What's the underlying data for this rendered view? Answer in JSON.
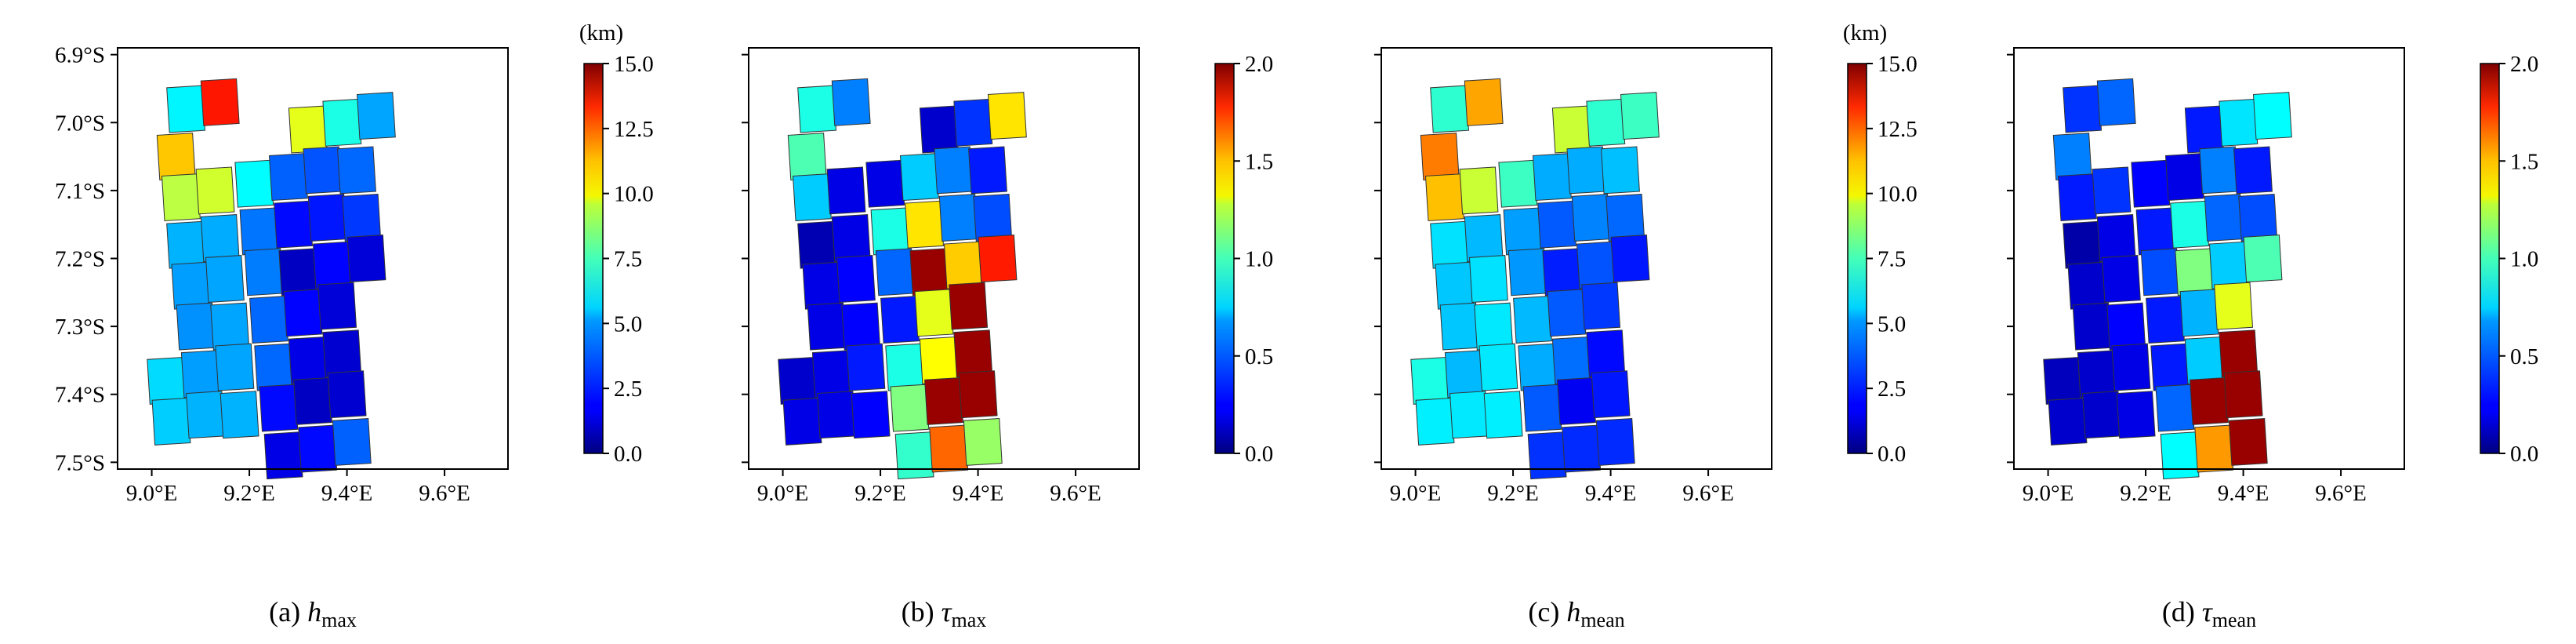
{
  "figure": {
    "panels_count": 4,
    "shared_axes": {
      "lon_ticks": [
        "9.0°E",
        "9.2°E",
        "9.4°E",
        "9.6°E"
      ],
      "lat_ticks": [
        "6.9°S",
        "7.0°S",
        "7.1°S",
        "7.2°S",
        "7.3°S",
        "7.4°S",
        "7.5°S"
      ]
    }
  },
  "chart_data": [
    {
      "id": "a",
      "type": "heatmap",
      "caption_prefix": "(a) ",
      "symbol": "h",
      "subscript": "max",
      "unit_label": "(km)",
      "xlim": [
        8.93,
        9.73
      ],
      "ylim": [
        -7.51,
        -6.89
      ],
      "colorbar": {
        "min": 0,
        "max": 15,
        "ticks": [
          "0.0",
          "2.5",
          "5.0",
          "7.5",
          "10.0",
          "12.5",
          "15.0"
        ]
      },
      "cells": [
        {
          "lon": 9.07,
          "lat": -6.98,
          "value": 5.5
        },
        {
          "lon": 9.14,
          "lat": -6.97,
          "value": 12.8
        },
        {
          "lon": 9.32,
          "lat": -7.01,
          "value": 9.0
        },
        {
          "lon": 9.39,
          "lat": -7.0,
          "value": 6.0
        },
        {
          "lon": 9.46,
          "lat": -6.99,
          "value": 4.3
        },
        {
          "lon": 9.05,
          "lat": -7.05,
          "value": 10.2
        },
        {
          "lon": 9.06,
          "lat": -7.11,
          "value": 8.4
        },
        {
          "lon": 9.13,
          "lat": -7.1,
          "value": 8.7
        },
        {
          "lon": 9.21,
          "lat": -7.09,
          "value": 5.6
        },
        {
          "lon": 9.28,
          "lat": -7.08,
          "value": 3.3
        },
        {
          "lon": 9.35,
          "lat": -7.07,
          "value": 3.1
        },
        {
          "lon": 9.42,
          "lat": -7.07,
          "value": 3.4
        },
        {
          "lon": 9.07,
          "lat": -7.18,
          "value": 4.5
        },
        {
          "lon": 9.14,
          "lat": -7.17,
          "value": 4.4
        },
        {
          "lon": 9.22,
          "lat": -7.16,
          "value": 3.6
        },
        {
          "lon": 9.29,
          "lat": -7.15,
          "value": 2.0
        },
        {
          "lon": 9.36,
          "lat": -7.14,
          "value": 2.2
        },
        {
          "lon": 9.43,
          "lat": -7.14,
          "value": 2.7
        },
        {
          "lon": 9.08,
          "lat": -7.24,
          "value": 4.2
        },
        {
          "lon": 9.15,
          "lat": -7.23,
          "value": 4.3
        },
        {
          "lon": 9.23,
          "lat": -7.22,
          "value": 3.7
        },
        {
          "lon": 9.3,
          "lat": -7.22,
          "value": 1.0
        },
        {
          "lon": 9.37,
          "lat": -7.21,
          "value": 1.9
        },
        {
          "lon": 9.44,
          "lat": -7.2,
          "value": 1.3
        },
        {
          "lon": 9.09,
          "lat": -7.3,
          "value": 4.0
        },
        {
          "lon": 9.16,
          "lat": -7.3,
          "value": 4.3
        },
        {
          "lon": 9.24,
          "lat": -7.29,
          "value": 3.4
        },
        {
          "lon": 9.31,
          "lat": -7.28,
          "value": 1.9
        },
        {
          "lon": 9.38,
          "lat": -7.27,
          "value": 1.3
        },
        {
          "lon": 9.03,
          "lat": -7.38,
          "value": 5.1
        },
        {
          "lon": 9.1,
          "lat": -7.37,
          "value": 4.2
        },
        {
          "lon": 9.17,
          "lat": -7.36,
          "value": 4.3
        },
        {
          "lon": 9.25,
          "lat": -7.36,
          "value": 3.4
        },
        {
          "lon": 9.32,
          "lat": -7.35,
          "value": 1.5
        },
        {
          "lon": 9.39,
          "lat": -7.34,
          "value": 1.2
        },
        {
          "lon": 9.04,
          "lat": -7.44,
          "value": 4.9
        },
        {
          "lon": 9.11,
          "lat": -7.43,
          "value": 4.5
        },
        {
          "lon": 9.18,
          "lat": -7.43,
          "value": 4.5
        },
        {
          "lon": 9.26,
          "lat": -7.42,
          "value": 2.0
        },
        {
          "lon": 9.33,
          "lat": -7.41,
          "value": 1.0
        },
        {
          "lon": 9.4,
          "lat": -7.4,
          "value": 1.2
        },
        {
          "lon": 9.27,
          "lat": -7.49,
          "value": 1.5
        },
        {
          "lon": 9.34,
          "lat": -7.48,
          "value": 2.0
        },
        {
          "lon": 9.41,
          "lat": -7.47,
          "value": 3.3
        }
      ]
    },
    {
      "id": "b",
      "type": "heatmap",
      "caption_prefix": "(b) ",
      "symbol": "τ",
      "subscript": "max",
      "unit_label": "",
      "xlim": [
        8.93,
        9.73
      ],
      "ylim": [
        -7.51,
        -6.89
      ],
      "colorbar": {
        "min": 0,
        "max": 2,
        "ticks": [
          "0.0",
          "0.5",
          "1.0",
          "1.5",
          "2.0"
        ]
      },
      "cells": [
        {
          "lon": 9.07,
          "lat": -6.98,
          "value": 0.8
        },
        {
          "lon": 9.14,
          "lat": -6.97,
          "value": 0.5
        },
        {
          "lon": 9.32,
          "lat": -7.01,
          "value": 0.15
        },
        {
          "lon": 9.39,
          "lat": -7.0,
          "value": 0.35
        },
        {
          "lon": 9.46,
          "lat": -6.99,
          "value": 1.3
        },
        {
          "lon": 9.05,
          "lat": -7.05,
          "value": 0.9
        },
        {
          "lon": 9.06,
          "lat": -7.11,
          "value": 0.65
        },
        {
          "lon": 9.13,
          "lat": -7.1,
          "value": 0.2
        },
        {
          "lon": 9.21,
          "lat": -7.09,
          "value": 0.2
        },
        {
          "lon": 9.28,
          "lat": -7.08,
          "value": 0.65
        },
        {
          "lon": 9.35,
          "lat": -7.07,
          "value": 0.5
        },
        {
          "lon": 9.42,
          "lat": -7.07,
          "value": 0.3
        },
        {
          "lon": 9.07,
          "lat": -7.18,
          "value": 0.1
        },
        {
          "lon": 9.14,
          "lat": -7.17,
          "value": 0.2
        },
        {
          "lon": 9.22,
          "lat": -7.16,
          "value": 0.8
        },
        {
          "lon": 9.29,
          "lat": -7.15,
          "value": 1.3
        },
        {
          "lon": 9.36,
          "lat": -7.14,
          "value": 0.5
        },
        {
          "lon": 9.43,
          "lat": -7.14,
          "value": 0.4
        },
        {
          "lon": 9.08,
          "lat": -7.24,
          "value": 0.2
        },
        {
          "lon": 9.15,
          "lat": -7.23,
          "value": 0.25
        },
        {
          "lon": 9.23,
          "lat": -7.22,
          "value": 0.45
        },
        {
          "lon": 9.3,
          "lat": -7.22,
          "value": 1.95
        },
        {
          "lon": 9.37,
          "lat": -7.21,
          "value": 1.35
        },
        {
          "lon": 9.44,
          "lat": -7.2,
          "value": 1.7
        },
        {
          "lon": 9.09,
          "lat": -7.3,
          "value": 0.2
        },
        {
          "lon": 9.16,
          "lat": -7.3,
          "value": 0.25
        },
        {
          "lon": 9.24,
          "lat": -7.29,
          "value": 0.3
        },
        {
          "lon": 9.31,
          "lat": -7.28,
          "value": 1.2
        },
        {
          "lon": 9.38,
          "lat": -7.27,
          "value": 1.95
        },
        {
          "lon": 9.03,
          "lat": -7.38,
          "value": 0.15
        },
        {
          "lon": 9.1,
          "lat": -7.37,
          "value": 0.2
        },
        {
          "lon": 9.17,
          "lat": -7.36,
          "value": 0.3
        },
        {
          "lon": 9.25,
          "lat": -7.36,
          "value": 0.8
        },
        {
          "lon": 9.32,
          "lat": -7.35,
          "value": 1.25
        },
        {
          "lon": 9.39,
          "lat": -7.34,
          "value": 1.95
        },
        {
          "lon": 9.04,
          "lat": -7.44,
          "value": 0.2
        },
        {
          "lon": 9.11,
          "lat": -7.43,
          "value": 0.2
        },
        {
          "lon": 9.18,
          "lat": -7.43,
          "value": 0.25
        },
        {
          "lon": 9.26,
          "lat": -7.42,
          "value": 1.0
        },
        {
          "lon": 9.33,
          "lat": -7.41,
          "value": 1.95
        },
        {
          "lon": 9.4,
          "lat": -7.4,
          "value": 1.95
        },
        {
          "lon": 9.27,
          "lat": -7.49,
          "value": 0.85
        },
        {
          "lon": 9.34,
          "lat": -7.48,
          "value": 1.55
        },
        {
          "lon": 9.41,
          "lat": -7.47,
          "value": 1.05
        }
      ]
    },
    {
      "id": "c",
      "type": "heatmap",
      "caption_prefix": "(c) ",
      "symbol": "h",
      "subscript": "mean",
      "unit_label": "(km)",
      "xlim": [
        8.93,
        9.73
      ],
      "ylim": [
        -7.51,
        -6.89
      ],
      "colorbar": {
        "min": 0,
        "max": 15,
        "ticks": [
          "0.0",
          "2.5",
          "5.0",
          "7.5",
          "10.0",
          "12.5",
          "15.0"
        ]
      },
      "cells": [
        {
          "lon": 9.07,
          "lat": -6.98,
          "value": 6.3
        },
        {
          "lon": 9.14,
          "lat": -6.97,
          "value": 10.7
        },
        {
          "lon": 9.32,
          "lat": -7.01,
          "value": 8.6
        },
        {
          "lon": 9.39,
          "lat": -7.0,
          "value": 6.3
        },
        {
          "lon": 9.46,
          "lat": -6.99,
          "value": 6.5
        },
        {
          "lon": 9.05,
          "lat": -7.05,
          "value": 11.3
        },
        {
          "lon": 9.06,
          "lat": -7.11,
          "value": 10.3
        },
        {
          "lon": 9.13,
          "lat": -7.1,
          "value": 8.6
        },
        {
          "lon": 9.21,
          "lat": -7.09,
          "value": 6.5
        },
        {
          "lon": 9.28,
          "lat": -7.08,
          "value": 4.4
        },
        {
          "lon": 9.35,
          "lat": -7.07,
          "value": 4.4
        },
        {
          "lon": 9.42,
          "lat": -7.07,
          "value": 4.7
        },
        {
          "lon": 9.07,
          "lat": -7.18,
          "value": 5.2
        },
        {
          "lon": 9.14,
          "lat": -7.17,
          "value": 4.6
        },
        {
          "lon": 9.22,
          "lat": -7.16,
          "value": 4.2
        },
        {
          "lon": 9.29,
          "lat": -7.15,
          "value": 3.2
        },
        {
          "lon": 9.36,
          "lat": -7.14,
          "value": 3.8
        },
        {
          "lon": 9.43,
          "lat": -7.14,
          "value": 3.4
        },
        {
          "lon": 9.08,
          "lat": -7.24,
          "value": 4.8
        },
        {
          "lon": 9.15,
          "lat": -7.23,
          "value": 5.2
        },
        {
          "lon": 9.23,
          "lat": -7.22,
          "value": 4.1
        },
        {
          "lon": 9.3,
          "lat": -7.22,
          "value": 2.3
        },
        {
          "lon": 9.37,
          "lat": -7.21,
          "value": 3.1
        },
        {
          "lon": 9.44,
          "lat": -7.2,
          "value": 2.2
        },
        {
          "lon": 9.09,
          "lat": -7.3,
          "value": 4.8
        },
        {
          "lon": 9.16,
          "lat": -7.3,
          "value": 5.3
        },
        {
          "lon": 9.24,
          "lat": -7.29,
          "value": 4.6
        },
        {
          "lon": 9.31,
          "lat": -7.28,
          "value": 3.2
        },
        {
          "lon": 9.38,
          "lat": -7.27,
          "value": 2.7
        },
        {
          "lon": 9.03,
          "lat": -7.38,
          "value": 6.0
        },
        {
          "lon": 9.1,
          "lat": -7.37,
          "value": 4.6
        },
        {
          "lon": 9.17,
          "lat": -7.36,
          "value": 5.3
        },
        {
          "lon": 9.25,
          "lat": -7.36,
          "value": 4.4
        },
        {
          "lon": 9.32,
          "lat": -7.35,
          "value": 3.5
        },
        {
          "lon": 9.39,
          "lat": -7.34,
          "value": 2.0
        },
        {
          "lon": 9.04,
          "lat": -7.44,
          "value": 5.4
        },
        {
          "lon": 9.11,
          "lat": -7.43,
          "value": 5.3
        },
        {
          "lon": 9.18,
          "lat": -7.43,
          "value": 5.4
        },
        {
          "lon": 9.26,
          "lat": -7.42,
          "value": 3.2
        },
        {
          "lon": 9.33,
          "lat": -7.41,
          "value": 1.7
        },
        {
          "lon": 9.4,
          "lat": -7.4,
          "value": 2.2
        },
        {
          "lon": 9.27,
          "lat": -7.49,
          "value": 2.6
        },
        {
          "lon": 9.34,
          "lat": -7.48,
          "value": 2.5
        },
        {
          "lon": 9.41,
          "lat": -7.47,
          "value": 2.5
        }
      ]
    },
    {
      "id": "d",
      "type": "heatmap",
      "caption_prefix": "(d) ",
      "symbol": "τ",
      "subscript": "mean",
      "unit_label": "",
      "xlim": [
        8.93,
        9.73
      ],
      "ylim": [
        -7.51,
        -6.89
      ],
      "colorbar": {
        "min": 0,
        "max": 2,
        "ticks": [
          "0.0",
          "0.5",
          "1.0",
          "1.5",
          "2.0"
        ]
      },
      "cells": [
        {
          "lon": 9.07,
          "lat": -6.98,
          "value": 0.35
        },
        {
          "lon": 9.14,
          "lat": -6.97,
          "value": 0.45
        },
        {
          "lon": 9.32,
          "lat": -7.01,
          "value": 0.3
        },
        {
          "lon": 9.39,
          "lat": -7.0,
          "value": 0.7
        },
        {
          "lon": 9.46,
          "lat": -6.99,
          "value": 0.75
        },
        {
          "lon": 9.05,
          "lat": -7.05,
          "value": 0.5
        },
        {
          "lon": 9.06,
          "lat": -7.11,
          "value": 0.3
        },
        {
          "lon": 9.13,
          "lat": -7.1,
          "value": 0.35
        },
        {
          "lon": 9.21,
          "lat": -7.09,
          "value": 0.25
        },
        {
          "lon": 9.28,
          "lat": -7.08,
          "value": 0.2
        },
        {
          "lon": 9.35,
          "lat": -7.07,
          "value": 0.5
        },
        {
          "lon": 9.42,
          "lat": -7.07,
          "value": 0.3
        },
        {
          "lon": 9.07,
          "lat": -7.18,
          "value": 0.08
        },
        {
          "lon": 9.14,
          "lat": -7.17,
          "value": 0.2
        },
        {
          "lon": 9.22,
          "lat": -7.16,
          "value": 0.3
        },
        {
          "lon": 9.29,
          "lat": -7.15,
          "value": 0.8
        },
        {
          "lon": 9.36,
          "lat": -7.14,
          "value": 0.45
        },
        {
          "lon": 9.43,
          "lat": -7.14,
          "value": 0.4
        },
        {
          "lon": 9.08,
          "lat": -7.24,
          "value": 0.15
        },
        {
          "lon": 9.15,
          "lat": -7.23,
          "value": 0.2
        },
        {
          "lon": 9.23,
          "lat": -7.22,
          "value": 0.4
        },
        {
          "lon": 9.3,
          "lat": -7.22,
          "value": 1.0
        },
        {
          "lon": 9.37,
          "lat": -7.21,
          "value": 0.65
        },
        {
          "lon": 9.44,
          "lat": -7.2,
          "value": 0.9
        },
        {
          "lon": 9.09,
          "lat": -7.3,
          "value": 0.15
        },
        {
          "lon": 9.16,
          "lat": -7.3,
          "value": 0.25
        },
        {
          "lon": 9.24,
          "lat": -7.29,
          "value": 0.3
        },
        {
          "lon": 9.31,
          "lat": -7.28,
          "value": 0.6
        },
        {
          "lon": 9.38,
          "lat": -7.27,
          "value": 1.2
        },
        {
          "lon": 9.03,
          "lat": -7.38,
          "value": 0.12
        },
        {
          "lon": 9.1,
          "lat": -7.37,
          "value": 0.15
        },
        {
          "lon": 9.17,
          "lat": -7.36,
          "value": 0.2
        },
        {
          "lon": 9.25,
          "lat": -7.36,
          "value": 0.3
        },
        {
          "lon": 9.32,
          "lat": -7.35,
          "value": 0.65
        },
        {
          "lon": 9.39,
          "lat": -7.34,
          "value": 1.95
        },
        {
          "lon": 9.04,
          "lat": -7.44,
          "value": 0.15
        },
        {
          "lon": 9.11,
          "lat": -7.43,
          "value": 0.15
        },
        {
          "lon": 9.18,
          "lat": -7.43,
          "value": 0.2
        },
        {
          "lon": 9.26,
          "lat": -7.42,
          "value": 0.45
        },
        {
          "lon": 9.33,
          "lat": -7.41,
          "value": 1.95
        },
        {
          "lon": 9.4,
          "lat": -7.4,
          "value": 1.95
        },
        {
          "lon": 9.27,
          "lat": -7.49,
          "value": 0.75
        },
        {
          "lon": 9.34,
          "lat": -7.48,
          "value": 1.45
        },
        {
          "lon": 9.41,
          "lat": -7.47,
          "value": 1.95
        }
      ]
    }
  ]
}
